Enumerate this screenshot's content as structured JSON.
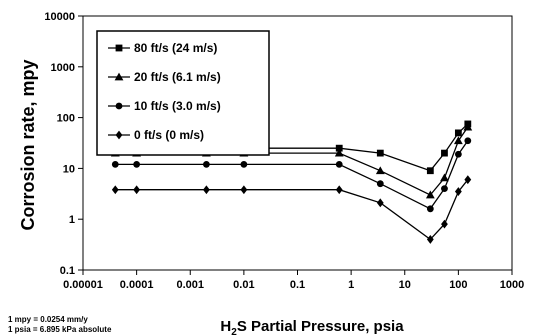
{
  "chart_data": {
    "type": "line",
    "x_scale": "log",
    "y_scale": "log",
    "xlabel_main": "H",
    "xlabel_sub": "2",
    "xlabel_rest": "S Partial Pressure, psia",
    "ylabel": "Corrosion rate, mpy",
    "xlim": [
      1e-05,
      1000
    ],
    "ylim": [
      0.1,
      10000
    ],
    "x_ticks": [
      {
        "value": 1e-05,
        "label": "0.00001"
      },
      {
        "value": 0.0001,
        "label": "0.0001"
      },
      {
        "value": 0.001,
        "label": "0.001"
      },
      {
        "value": 0.01,
        "label": "0.01"
      },
      {
        "value": 0.1,
        "label": "0.1"
      },
      {
        "value": 1,
        "label": "1"
      },
      {
        "value": 10,
        "label": "10"
      },
      {
        "value": 100,
        "label": "100"
      },
      {
        "value": 1000,
        "label": "1000"
      }
    ],
    "y_ticks": [
      {
        "value": 0.1,
        "label": "0.1"
      },
      {
        "value": 1,
        "label": "1"
      },
      {
        "value": 10,
        "label": "10"
      },
      {
        "value": 100,
        "label": "100"
      },
      {
        "value": 1000,
        "label": "1000"
      },
      {
        "value": 10000,
        "label": "10000"
      }
    ],
    "grid": false,
    "legend_position": "top-left",
    "series": [
      {
        "name": "80 ft/s (24 m/s)",
        "marker": "square",
        "x": [
          4e-05,
          0.0001,
          0.002,
          0.01,
          0.6,
          3.5,
          30,
          55,
          100,
          150
        ],
        "y": [
          25,
          25,
          25,
          25,
          25,
          20,
          9,
          20,
          50,
          75
        ]
      },
      {
        "name": "20 ft/s (6.1 m/s)",
        "marker": "triangle",
        "x": [
          4e-05,
          0.0001,
          0.002,
          0.01,
          0.6,
          3.5,
          30,
          55,
          100,
          150
        ],
        "y": [
          20,
          20,
          20,
          20,
          20,
          9,
          3,
          6.5,
          35,
          65
        ]
      },
      {
        "name": "10 ft/s (3.0 m/s)",
        "marker": "circle",
        "x": [
          4e-05,
          0.0001,
          0.002,
          0.01,
          0.6,
          3.5,
          30,
          55,
          100,
          150
        ],
        "y": [
          12,
          12,
          12,
          12,
          12,
          5,
          1.6,
          4,
          19,
          35
        ]
      },
      {
        "name": "0 ft/s (0 m/s)",
        "marker": "diamond",
        "x": [
          4e-05,
          0.0001,
          0.002,
          0.01,
          0.6,
          3.5,
          30,
          55,
          100,
          150
        ],
        "y": [
          3.8,
          3.8,
          3.8,
          3.8,
          3.8,
          2.1,
          0.4,
          0.8,
          3.5,
          6
        ]
      }
    ],
    "notes": [
      "1 mpy = 0.0254 mm/y",
      "1 psia = 6.895 kPa absolute"
    ]
  }
}
